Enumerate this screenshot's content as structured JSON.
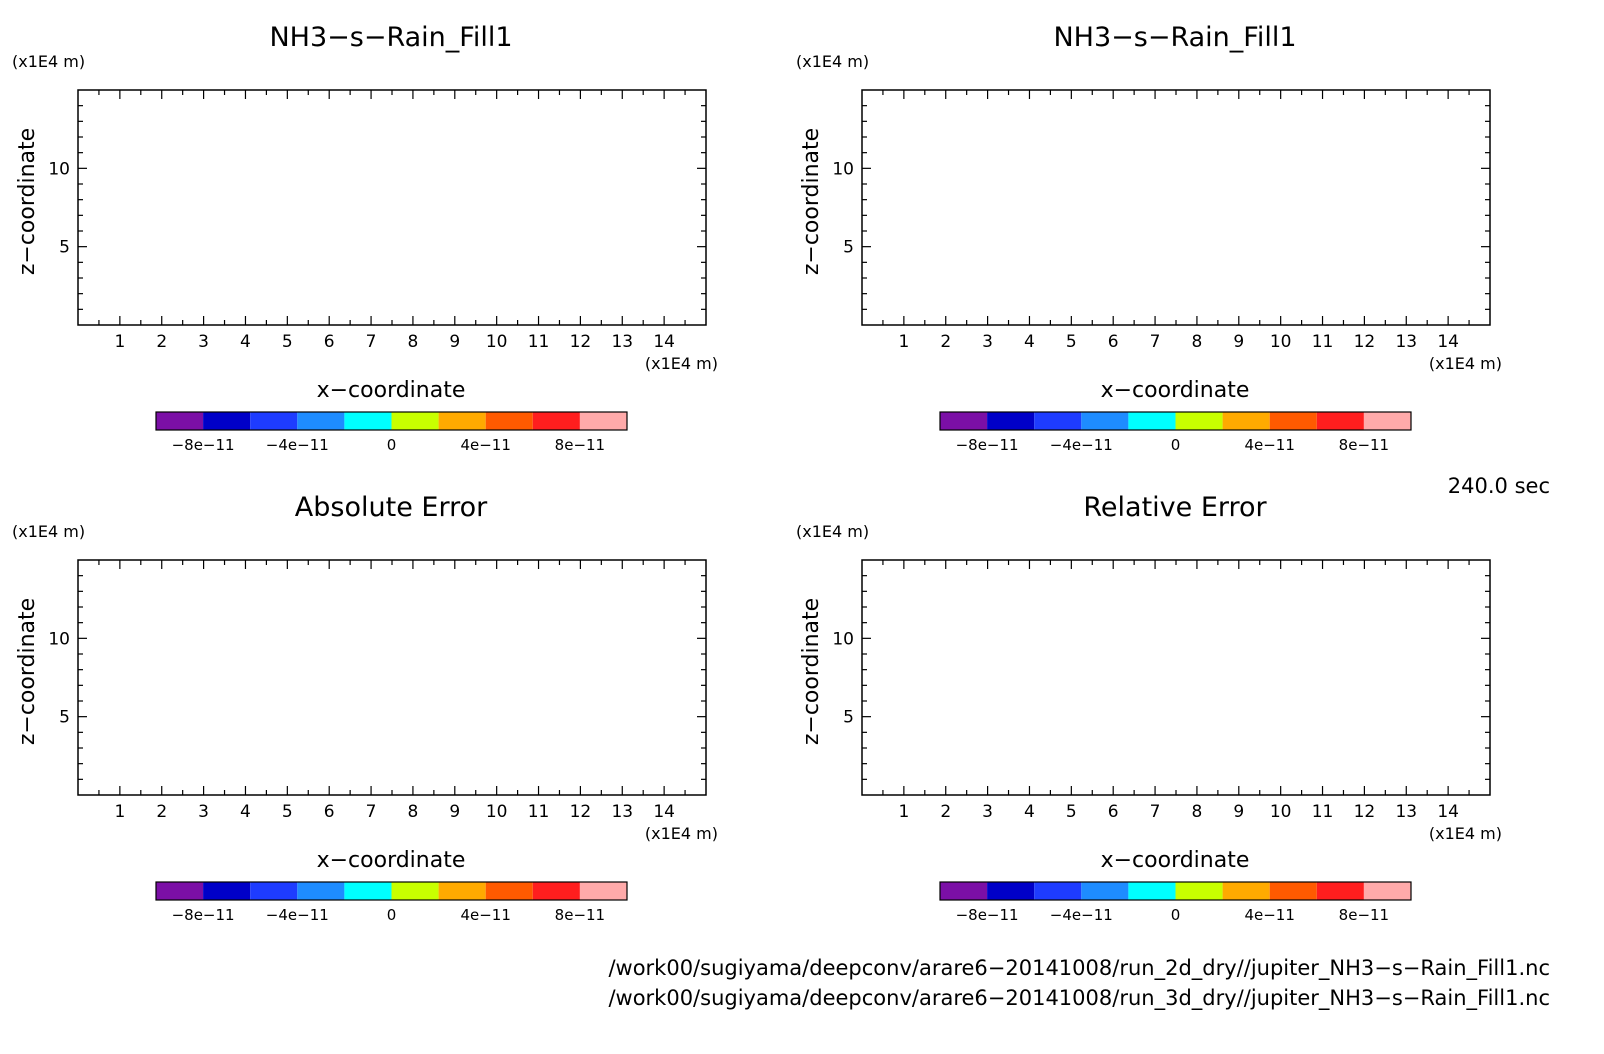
{
  "chart_data": [
    {
      "type": "heatmap",
      "title": "NH3−s−Rain_Fill1",
      "xlabel": "x−coordinate",
      "ylabel": "z−coordinate",
      "x_unit": "(x1E4 m)",
      "y_unit": "(x1E4 m)",
      "xlim": [
        0,
        15
      ],
      "ylim": [
        0,
        15
      ],
      "x_ticks": [
        "1",
        "2",
        "3",
        "4",
        "5",
        "6",
        "7",
        "8",
        "9",
        "10",
        "11",
        "12",
        "13",
        "14"
      ],
      "y_ticks": [
        "5",
        "10"
      ],
      "colorbar": {
        "colors": [
          "#7b0fa6",
          "#0000c8",
          "#1e3cff",
          "#1e8cff",
          "#00ffff",
          "#c8ff00",
          "#ffaa00",
          "#ff5a00",
          "#ff1e1e",
          "#ffaaaa"
        ],
        "tick_labels": [
          "−8e−11",
          "−4e−11",
          "0",
          "4e−11",
          "8e−11"
        ]
      }
    },
    {
      "type": "heatmap",
      "title": "NH3−s−Rain_Fill1",
      "xlabel": "x−coordinate",
      "ylabel": "z−coordinate",
      "x_unit": "(x1E4 m)",
      "y_unit": "(x1E4 m)",
      "xlim": [
        0,
        15
      ],
      "ylim": [
        0,
        15
      ],
      "x_ticks": [
        "1",
        "2",
        "3",
        "4",
        "5",
        "6",
        "7",
        "8",
        "9",
        "10",
        "11",
        "12",
        "13",
        "14"
      ],
      "y_ticks": [
        "5",
        "10"
      ],
      "colorbar": {
        "colors": [
          "#7b0fa6",
          "#0000c8",
          "#1e3cff",
          "#1e8cff",
          "#00ffff",
          "#c8ff00",
          "#ffaa00",
          "#ff5a00",
          "#ff1e1e",
          "#ffaaaa"
        ],
        "tick_labels": [
          "−8e−11",
          "−4e−11",
          "0",
          "4e−11",
          "8e−11"
        ]
      }
    },
    {
      "type": "heatmap",
      "title": "Absolute Error",
      "xlabel": "x−coordinate",
      "ylabel": "z−coordinate",
      "x_unit": "(x1E4 m)",
      "y_unit": "(x1E4 m)",
      "xlim": [
        0,
        15
      ],
      "ylim": [
        0,
        15
      ],
      "x_ticks": [
        "1",
        "2",
        "3",
        "4",
        "5",
        "6",
        "7",
        "8",
        "9",
        "10",
        "11",
        "12",
        "13",
        "14"
      ],
      "y_ticks": [
        "5",
        "10"
      ],
      "colorbar": {
        "colors": [
          "#7b0fa6",
          "#0000c8",
          "#1e3cff",
          "#1e8cff",
          "#00ffff",
          "#c8ff00",
          "#ffaa00",
          "#ff5a00",
          "#ff1e1e",
          "#ffaaaa"
        ],
        "tick_labels": [
          "−8e−11",
          "−4e−11",
          "0",
          "4e−11",
          "8e−11"
        ]
      }
    },
    {
      "type": "heatmap",
      "title": "Relative Error",
      "xlabel": "x−coordinate",
      "ylabel": "z−coordinate",
      "x_unit": "(x1E4 m)",
      "y_unit": "(x1E4 m)",
      "xlim": [
        0,
        15
      ],
      "ylim": [
        0,
        15
      ],
      "x_ticks": [
        "1",
        "2",
        "3",
        "4",
        "5",
        "6",
        "7",
        "8",
        "9",
        "10",
        "11",
        "12",
        "13",
        "14"
      ],
      "y_ticks": [
        "5",
        "10"
      ],
      "colorbar": {
        "colors": [
          "#7b0fa6",
          "#0000c8",
          "#1e3cff",
          "#1e8cff",
          "#00ffff",
          "#c8ff00",
          "#ffaa00",
          "#ff5a00",
          "#ff1e1e",
          "#ffaaaa"
        ],
        "tick_labels": [
          "−8e−11",
          "−4e−11",
          "0",
          "4e−11",
          "8e−11"
        ]
      }
    }
  ],
  "timestamp": "240.0 sec",
  "footer_lines": [
    "/work00/sugiyama/deepconv/arare6−20141008/run_2d_dry//jupiter_NH3−s−Rain_Fill1.nc",
    "/work00/sugiyama/deepconv/arare6−20141008/run_3d_dry//jupiter_NH3−s−Rain_Fill1.nc"
  ]
}
